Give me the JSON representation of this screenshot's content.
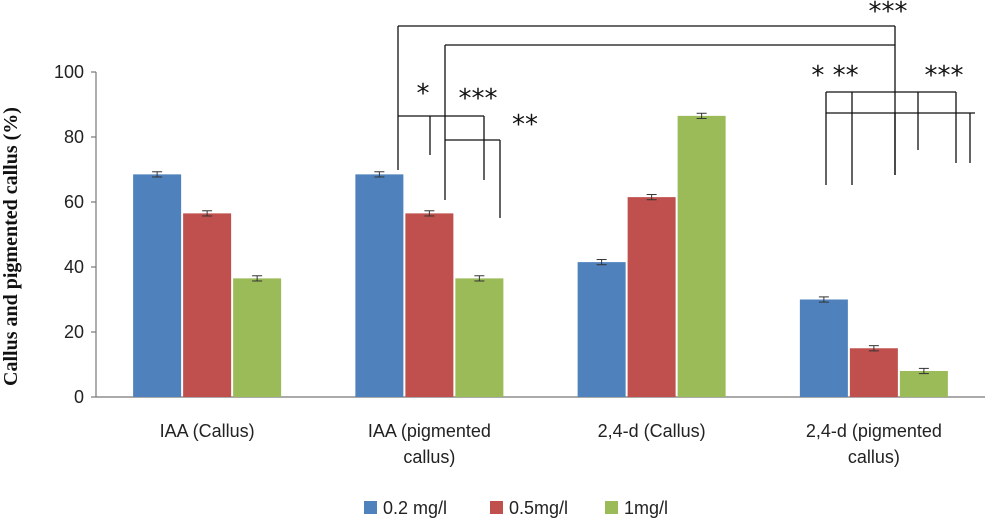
{
  "chart_data": {
    "type": "bar",
    "title": "",
    "xlabel": "",
    "ylabel": "Callus and pigmented callus (%)",
    "ylim": [
      0,
      100
    ],
    "yticks": [
      0,
      20,
      40,
      60,
      80,
      100
    ],
    "categories": [
      [
        "IAA (Callus)"
      ],
      [
        "IAA (pigmented",
        "callus)"
      ],
      [
        "2,4-d (Callus)"
      ],
      [
        "2,4-d (pigmented",
        "callus)"
      ]
    ],
    "series": [
      {
        "name": "0.2 mg/l",
        "color": "#4f81bd",
        "values": [
          68.5,
          68.5,
          41.5,
          30
        ]
      },
      {
        "name": "0.5mg/l",
        "color": "#c0504d",
        "values": [
          56.5,
          56.5,
          61.5,
          15
        ]
      },
      {
        "name": "1mg/l",
        "color": "#9bbb59",
        "values": [
          36.5,
          36.5,
          86.5,
          8
        ]
      }
    ],
    "error_bars": true,
    "grid": false,
    "legend": "bottom",
    "annotations": [
      "***",
      "*",
      "***",
      "**",
      "* **",
      "***"
    ]
  }
}
